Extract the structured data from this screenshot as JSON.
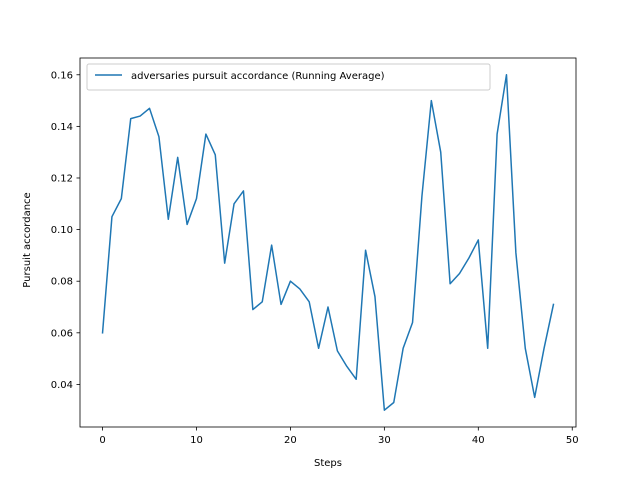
{
  "chart_data": {
    "type": "line",
    "title": "",
    "xlabel": "Steps",
    "ylabel": "Pursuit accordance",
    "xlim": [
      -2.4,
      50.4
    ],
    "ylim": [
      0.0235,
      0.1665
    ],
    "xticks": [
      0,
      10,
      20,
      30,
      40,
      50
    ],
    "yticks": [
      0.04,
      0.06,
      0.08,
      0.1,
      0.12,
      0.14,
      0.16
    ],
    "ytick_labels": [
      "0.04",
      "0.06",
      "0.08",
      "0.10",
      "0.12",
      "0.14",
      "0.16"
    ],
    "grid": false,
    "legend_position": "upper-left",
    "series": [
      {
        "name": "adversaries pursuit accordance (Running Average)",
        "color": "#1f77b4",
        "x": [
          0,
          1,
          2,
          3,
          4,
          5,
          6,
          7,
          8,
          9,
          10,
          11,
          12,
          13,
          14,
          15,
          16,
          17,
          18,
          19,
          20,
          21,
          22,
          23,
          24,
          25,
          26,
          27,
          28,
          29,
          30,
          31,
          32,
          33,
          34,
          35,
          36,
          37,
          38,
          39,
          40,
          41,
          42,
          43,
          44,
          45,
          46,
          47,
          48
        ],
        "values": [
          0.06,
          0.105,
          0.112,
          0.143,
          0.144,
          0.147,
          0.136,
          0.104,
          0.128,
          0.102,
          0.112,
          0.137,
          0.129,
          0.087,
          0.11,
          0.115,
          0.069,
          0.072,
          0.094,
          0.071,
          0.08,
          0.077,
          0.072,
          0.054,
          0.07,
          0.053,
          0.047,
          0.042,
          0.092,
          0.074,
          0.03,
          0.033,
          0.054,
          0.064,
          0.113,
          0.15,
          0.13,
          0.079,
          0.083,
          0.089,
          0.096,
          0.054,
          0.137,
          0.16,
          0.091,
          0.054,
          0.035,
          0.054,
          0.071
        ]
      }
    ]
  }
}
